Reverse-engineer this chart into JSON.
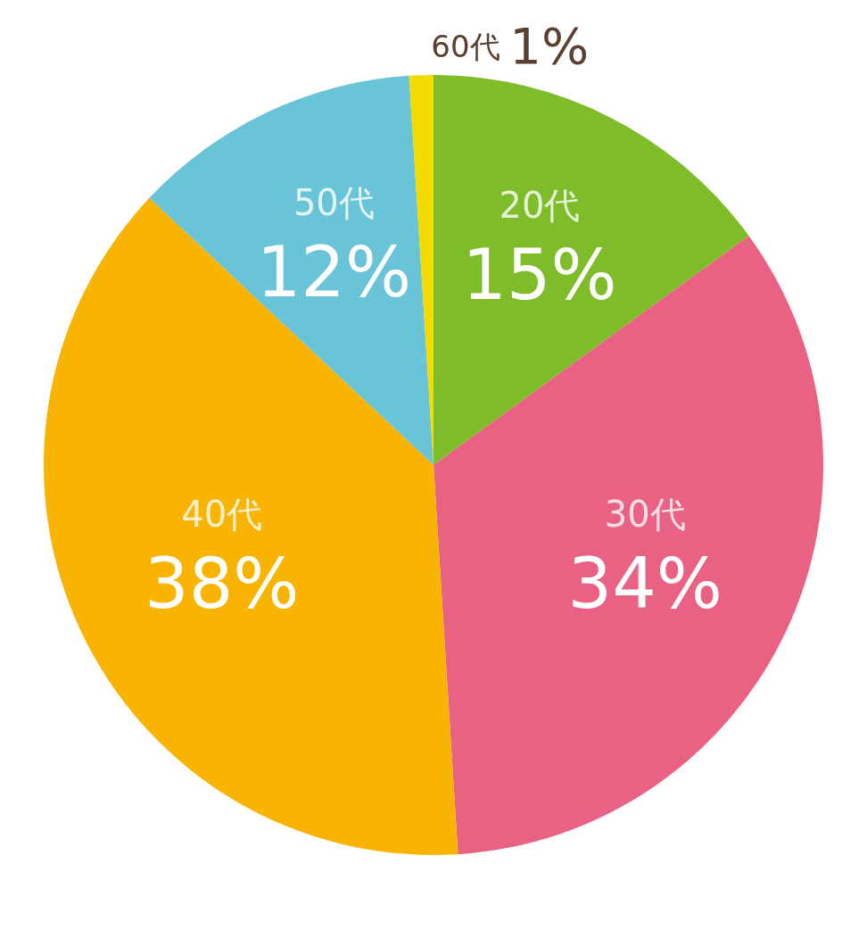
{
  "chart_data": {
    "type": "pie",
    "categories": [
      "20代",
      "30代",
      "40代",
      "50代",
      "60代"
    ],
    "values": [
      15,
      34,
      38,
      12,
      1
    ],
    "colors": [
      "#7fbc29",
      "#e96283",
      "#f8b400",
      "#68c4d6",
      "#f2dc00"
    ],
    "value_labels": [
      "15%",
      "34%",
      "38%",
      "12%",
      "1%"
    ]
  }
}
